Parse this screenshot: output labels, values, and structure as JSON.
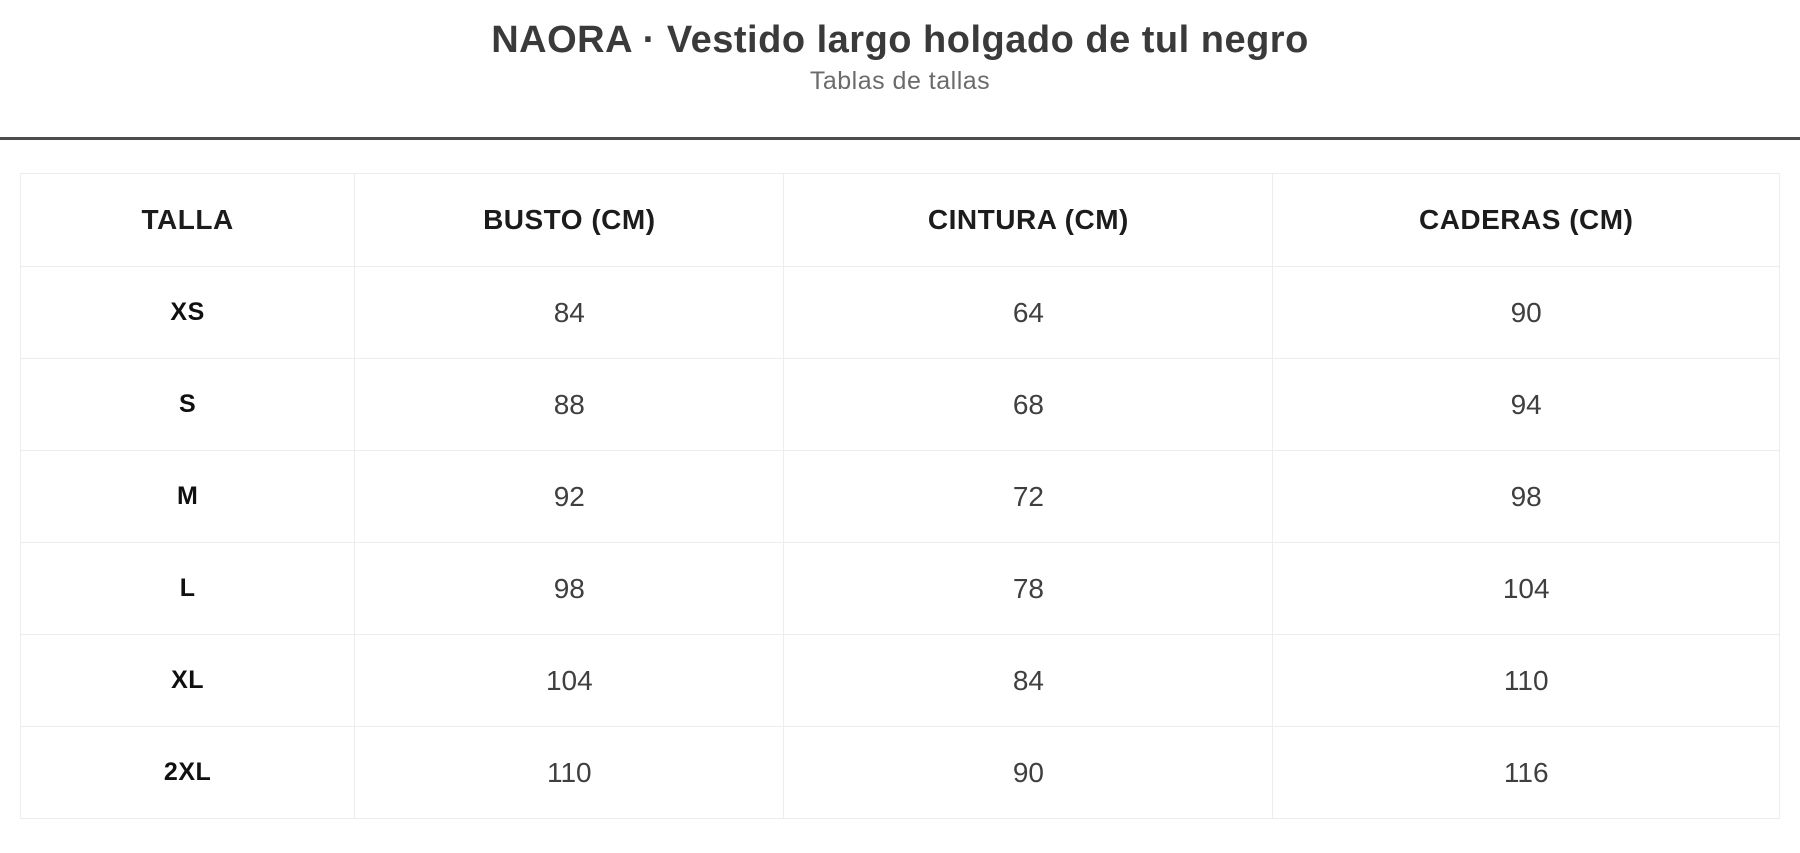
{
  "page": {
    "title": "NAORA · Vestido largo holgado de tul negro",
    "subtitle": "Tablas de tallas"
  },
  "colors": {
    "background": "#ffffff",
    "title_text": "#3a3a3a",
    "subtitle_text": "#6b6b6b",
    "divider": "#4d4d4d",
    "table_border": "#ededed",
    "header_text": "#1c1c1c",
    "size_label_text": "#101010",
    "value_text": "#3f3f3f"
  },
  "table": {
    "columns": [
      "TALLA",
      "BUSTO (CM)",
      "CINTURA (CM)",
      "CADERAS (CM)"
    ],
    "column_keys": [
      "bust-value",
      "waist-value",
      "hips-value"
    ],
    "rows": [
      {
        "size": "XS",
        "values": [
          "84",
          "64",
          "90"
        ]
      },
      {
        "size": "S",
        "values": [
          "88",
          "68",
          "94"
        ]
      },
      {
        "size": "M",
        "values": [
          "92",
          "72",
          "98"
        ]
      },
      {
        "size": "L",
        "values": [
          "98",
          "78",
          "104"
        ]
      },
      {
        "size": "XL",
        "values": [
          "104",
          "84",
          "110"
        ]
      },
      {
        "size": "2XL",
        "values": [
          "110",
          "90",
          "116"
        ]
      }
    ]
  }
}
